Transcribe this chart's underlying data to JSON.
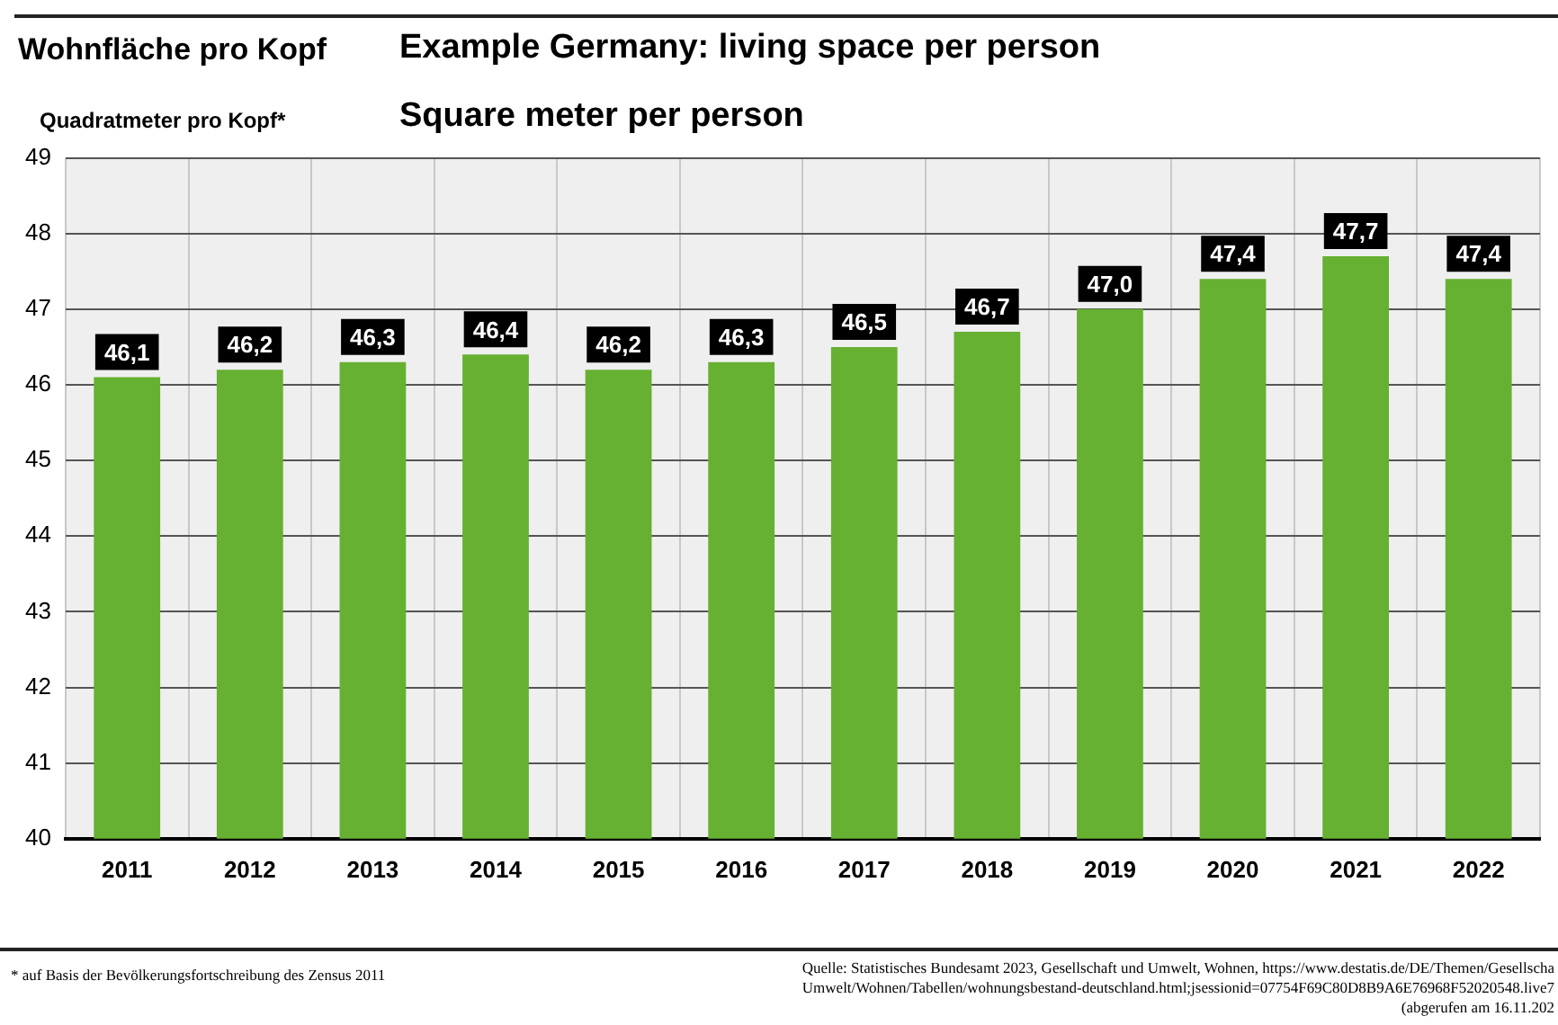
{
  "chart_data": {
    "type": "bar",
    "title": "Wohnfläche pro Kopf",
    "subtitle": "Example Germany: living space per person",
    "ylabel": "Quadratmeter pro Kopf*",
    "annotations": [
      "Square meter per person",
      "* auf Basis der Bevölkerungsfortschreibung des Zensus 2011",
      "Quelle: Statistisches Bundesamt 2023, Gesellschaft und Umwelt, Wohnen, https://www.destatis.de/DE/Themen/Gesellscha",
      "Umwelt/Wohnen/Tabellen/wohnungsbestand-deutschland.html;jsessionid=07754F69C80D8B9A6E76968F52020548.live7",
      "(abgerufen am 16.11.202"
    ],
    "categories": [
      "2011",
      "2012",
      "2013",
      "2014",
      "2015",
      "2016",
      "2017",
      "2018",
      "2019",
      "2020",
      "2021",
      "2022"
    ],
    "values": [
      46.1,
      46.2,
      46.3,
      46.4,
      46.2,
      46.3,
      46.5,
      46.7,
      47.0,
      47.4,
      47.7,
      47.4
    ],
    "value_labels": [
      "46,1",
      "46,2",
      "46,3",
      "46,4",
      "46,2",
      "46,3",
      "46,5",
      "46,7",
      "47,0",
      "47,4",
      "47,7",
      "47,4"
    ],
    "color": "#66b032",
    "ylim": [
      40,
      49
    ],
    "yticks": [
      40,
      41,
      42,
      43,
      44,
      45,
      46,
      47,
      48,
      49
    ],
    "grid": true
  }
}
